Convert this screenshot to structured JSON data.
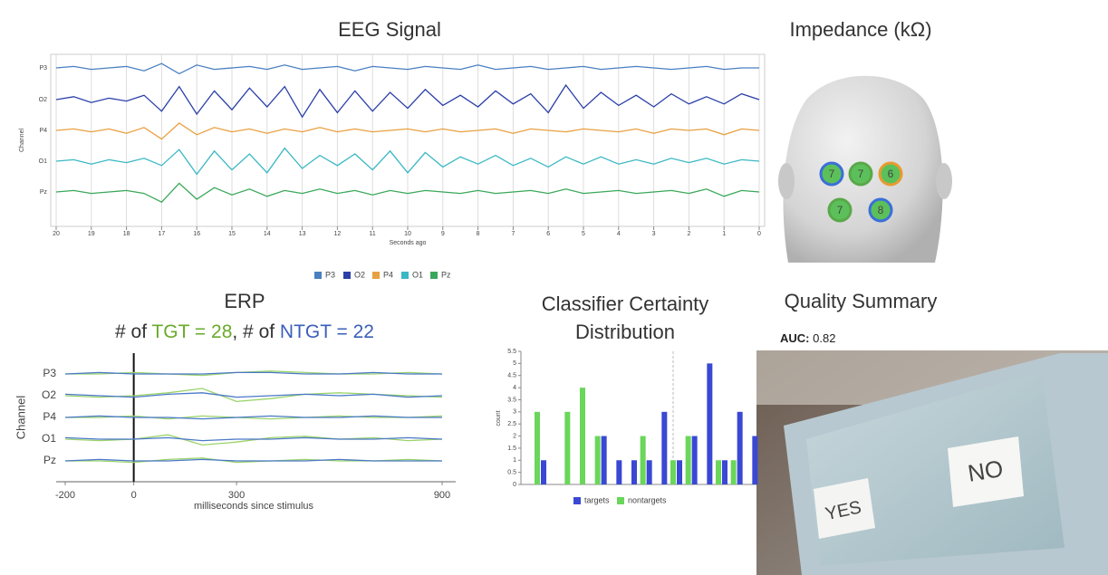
{
  "chart_data": [
    {
      "type": "line",
      "title": "EEG Signal",
      "xlabel": "Seconds ago",
      "ylabel": "Channel",
      "categories": [
        "P3",
        "O2",
        "P4",
        "O1",
        "Pz"
      ],
      "x": [
        20,
        19.5,
        19,
        18.5,
        18,
        17.5,
        17,
        16.5,
        16,
        15.5,
        15,
        14.5,
        14,
        13.5,
        13,
        12.5,
        12,
        11.5,
        11,
        10.5,
        10,
        9.5,
        9,
        8.5,
        8,
        7.5,
        7,
        6.5,
        6,
        5.5,
        5,
        4.5,
        4,
        3.5,
        3,
        2.5,
        2,
        1.5,
        1,
        0.5,
        0
      ],
      "xlim": [
        20,
        0
      ],
      "xticks": [
        20,
        19,
        18,
        17,
        16,
        15,
        14,
        13,
        12,
        11,
        10,
        9,
        8,
        7,
        6,
        5,
        4,
        3,
        2,
        1,
        0
      ],
      "grid": true,
      "series": [
        {
          "name": "P3",
          "color": "#4a7fc1",
          "values": [
            0,
            1,
            -1,
            0,
            1,
            -2,
            3,
            -4,
            2,
            -1,
            0,
            1,
            -1,
            2,
            -1,
            0,
            1,
            -2,
            1,
            0,
            -1,
            1,
            0,
            -1,
            2,
            -1,
            0,
            1,
            -1,
            0,
            1,
            -1,
            0,
            1,
            0,
            -1,
            0,
            1,
            -1,
            0,
            0
          ]
        },
        {
          "name": "O2",
          "color": "#2b3fa8",
          "values": [
            0,
            2,
            -2,
            1,
            -1,
            3,
            -8,
            9,
            -10,
            6,
            -7,
            8,
            -5,
            9,
            -12,
            7,
            -9,
            6,
            -8,
            5,
            -6,
            7,
            -4,
            3,
            -5,
            6,
            -3,
            4,
            -9,
            10,
            -6,
            5,
            -4,
            3,
            -5,
            4,
            -3,
            2,
            -3,
            4,
            0
          ]
        },
        {
          "name": "P4",
          "color": "#e8a040",
          "values": [
            0,
            1,
            -1,
            1,
            -2,
            2,
            -6,
            5,
            -3,
            2,
            -1,
            1,
            -2,
            1,
            -1,
            2,
            -1,
            1,
            -1,
            0,
            1,
            -1,
            1,
            -1,
            0,
            1,
            -2,
            1,
            0,
            -1,
            1,
            0,
            -1,
            1,
            -2,
            1,
            0,
            1,
            -3,
            1,
            0
          ]
        },
        {
          "name": "O1",
          "color": "#3bb8c4",
          "values": [
            0,
            1,
            -2,
            1,
            -1,
            2,
            -3,
            8,
            -9,
            7,
            -6,
            5,
            -8,
            9,
            -5,
            4,
            -3,
            5,
            -6,
            7,
            -8,
            6,
            -4,
            3,
            -2,
            4,
            -3,
            2,
            -4,
            3,
            -2,
            3,
            -2,
            1,
            -2,
            2,
            -1,
            2,
            -2,
            1,
            0
          ]
        },
        {
          "name": "Pz",
          "color": "#3aa85a",
          "values": [
            0,
            1,
            -1,
            0,
            1,
            -1,
            -7,
            6,
            -5,
            3,
            -2,
            2,
            -3,
            1,
            -1,
            2,
            -1,
            1,
            -2,
            1,
            -1,
            1,
            0,
            -1,
            1,
            -1,
            0,
            1,
            -1,
            2,
            -1,
            0,
            1,
            -1,
            0,
            1,
            -1,
            2,
            -3,
            1,
            0
          ]
        }
      ]
    },
    {
      "type": "line",
      "title": "ERP",
      "subtitle": [
        {
          "text": "# of ",
          "color": "#333333"
        },
        {
          "text": "TGT = 28",
          "color": "#6aaa2a"
        },
        {
          "text": ", # of ",
          "color": "#333333"
        },
        {
          "text": "NTGT = 22",
          "color": "#3a5fb8"
        }
      ],
      "xlabel": "milliseconds since stimulus",
      "ylabel": "Channel",
      "categories": [
        "P3",
        "O2",
        "P4",
        "O1",
        "Pz"
      ],
      "x": [
        -200,
        -100,
        0,
        100,
        200,
        300,
        400,
        500,
        600,
        700,
        800,
        900
      ],
      "xlim": [
        -200,
        900
      ],
      "xticks": [
        -200,
        0,
        300,
        900
      ],
      "series": [
        {
          "color": "#9bd36a",
          "values": [
            [
              0,
              0,
              1,
              0,
              -1,
              1,
              2,
              1,
              0,
              0,
              1,
              0
            ],
            [
              0,
              -1,
              0,
              2,
              5,
              -4,
              -2,
              1,
              2,
              1,
              0,
              -1
            ],
            [
              0,
              0,
              1,
              -1,
              1,
              0,
              -1,
              0,
              1,
              0,
              0,
              1
            ],
            [
              0,
              -1,
              0,
              3,
              -4,
              -2,
              1,
              2,
              0,
              1,
              -1,
              0
            ],
            [
              0,
              0,
              -1,
              1,
              2,
              -1,
              0,
              1,
              0,
              0,
              1,
              0
            ]
          ]
        },
        {
          "color": "#4a78c8",
          "values": [
            [
              0,
              1,
              0,
              0,
              0,
              1,
              1,
              0,
              0,
              1,
              0,
              0
            ],
            [
              1,
              0,
              -1,
              1,
              2,
              -1,
              0,
              1,
              0,
              1,
              -1,
              0
            ],
            [
              0,
              1,
              0,
              0,
              -1,
              0,
              1,
              0,
              0,
              1,
              0,
              0
            ],
            [
              1,
              0,
              0,
              1,
              -1,
              0,
              0,
              1,
              0,
              0,
              1,
              0
            ],
            [
              0,
              1,
              0,
              0,
              1,
              0,
              0,
              0,
              1,
              0,
              0,
              0
            ]
          ]
        }
      ]
    },
    {
      "type": "bar",
      "title": "Classifier Certainty Distribution",
      "ylabel": "count",
      "categories": [
        null,
        null,
        null,
        null,
        null,
        null,
        null,
        null,
        null,
        null,
        null,
        null,
        null,
        null,
        null
      ],
      "ylim": [
        0,
        5.5
      ],
      "yticks": [
        0,
        0.5,
        1,
        1.5,
        2,
        2.5,
        3,
        3.5,
        4,
        4.5,
        5,
        5.5
      ],
      "series": [
        {
          "name": "targets",
          "color": "#3a48d4",
          "values": [
            1,
            0,
            0,
            0,
            2,
            1,
            1,
            1,
            3,
            1,
            2,
            5,
            1,
            3,
            2
          ]
        },
        {
          "name": "nontargets",
          "color": "#6ad65a",
          "values": [
            3,
            0,
            3,
            4,
            2,
            0,
            0,
            2,
            0,
            1,
            2,
            0,
            1,
            1,
            0
          ]
        }
      ]
    }
  ],
  "impedance": {
    "title": "Impedance (kΩ)",
    "values": [
      7,
      7,
      6,
      7,
      8
    ],
    "ring_colors": [
      "#3a6fd8",
      "#5aa84a",
      "#e89a30",
      "#5aa84a",
      "#3a6fd8"
    ]
  },
  "quality": {
    "title": "Quality Summary",
    "metric_label": "AUC:",
    "metric_value": 0.82,
    "screen_labels": [
      "YES",
      "NO"
    ]
  }
}
